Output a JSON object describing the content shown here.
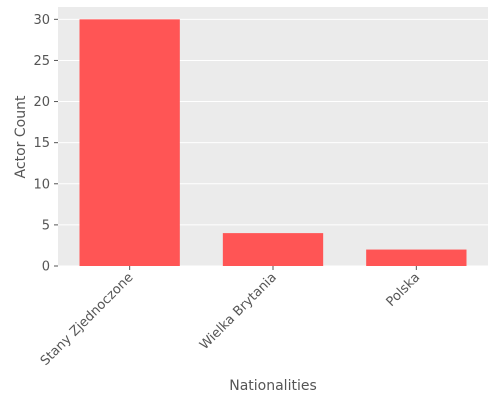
{
  "chart_data": {
    "type": "bar",
    "title": "",
    "xlabel": "Nationalities",
    "ylabel": "Actor Count",
    "categories": [
      "Stany Zjednoczone",
      "Wielka Brytania",
      "Polska"
    ],
    "values": [
      30,
      4,
      2
    ],
    "ylim": [
      0,
      31.5
    ],
    "yticks": [
      0,
      5,
      10,
      15,
      20,
      25,
      30
    ],
    "grid": true,
    "bar_color": "#ff5555",
    "background_color": "#ebebeb",
    "grid_color": "#ffffff"
  }
}
